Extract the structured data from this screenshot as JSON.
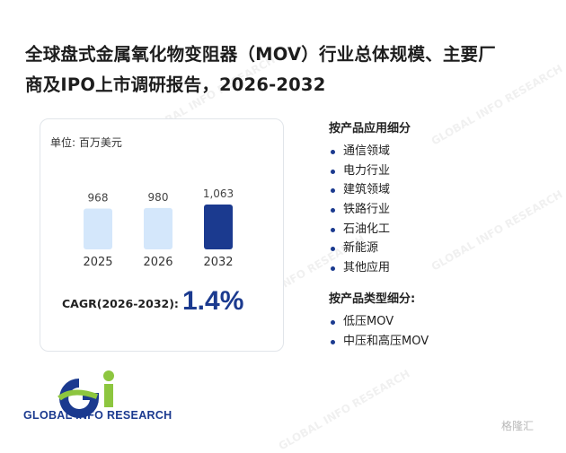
{
  "title_line1": "全球盘式金属氧化物变阻器（MOV）行业总体规模、主要厂",
  "title_line2": "商及IPO上市调研报告，2026-2032",
  "card": {
    "unit": "单位: 百万美元",
    "cagr_label": "CAGR(2026-2032):",
    "cagr_value": "1.4%"
  },
  "chart_data": {
    "type": "bar",
    "categories": [
      "2025",
      "2026",
      "2032"
    ],
    "values": [
      968,
      980,
      1063
    ],
    "value_labels": [
      "968",
      "980",
      "1,063"
    ],
    "colors": [
      "#d4e7fb",
      "#d4e7fb",
      "#1b3a8f"
    ]
  },
  "application": {
    "heading": "按产品应用细分",
    "items": [
      "通信领域",
      "电力行业",
      "建筑领域",
      "铁路行业",
      "石油化工",
      "新能源",
      "其他应用"
    ]
  },
  "type_section": {
    "heading": "按产品类型细分:",
    "items": [
      "低压MOV",
      "中压和高压MOV"
    ]
  },
  "logo": {
    "text": "GLOBAL INFO RESEARCH"
  },
  "watermark": {
    "text": "GLOBAL INFO RESEARCH",
    "corner_text": "格隆汇"
  },
  "colors": {
    "accent": "#1b3a8f",
    "light_bar": "#d4e7fb",
    "logo_green": "#8dc63f"
  }
}
